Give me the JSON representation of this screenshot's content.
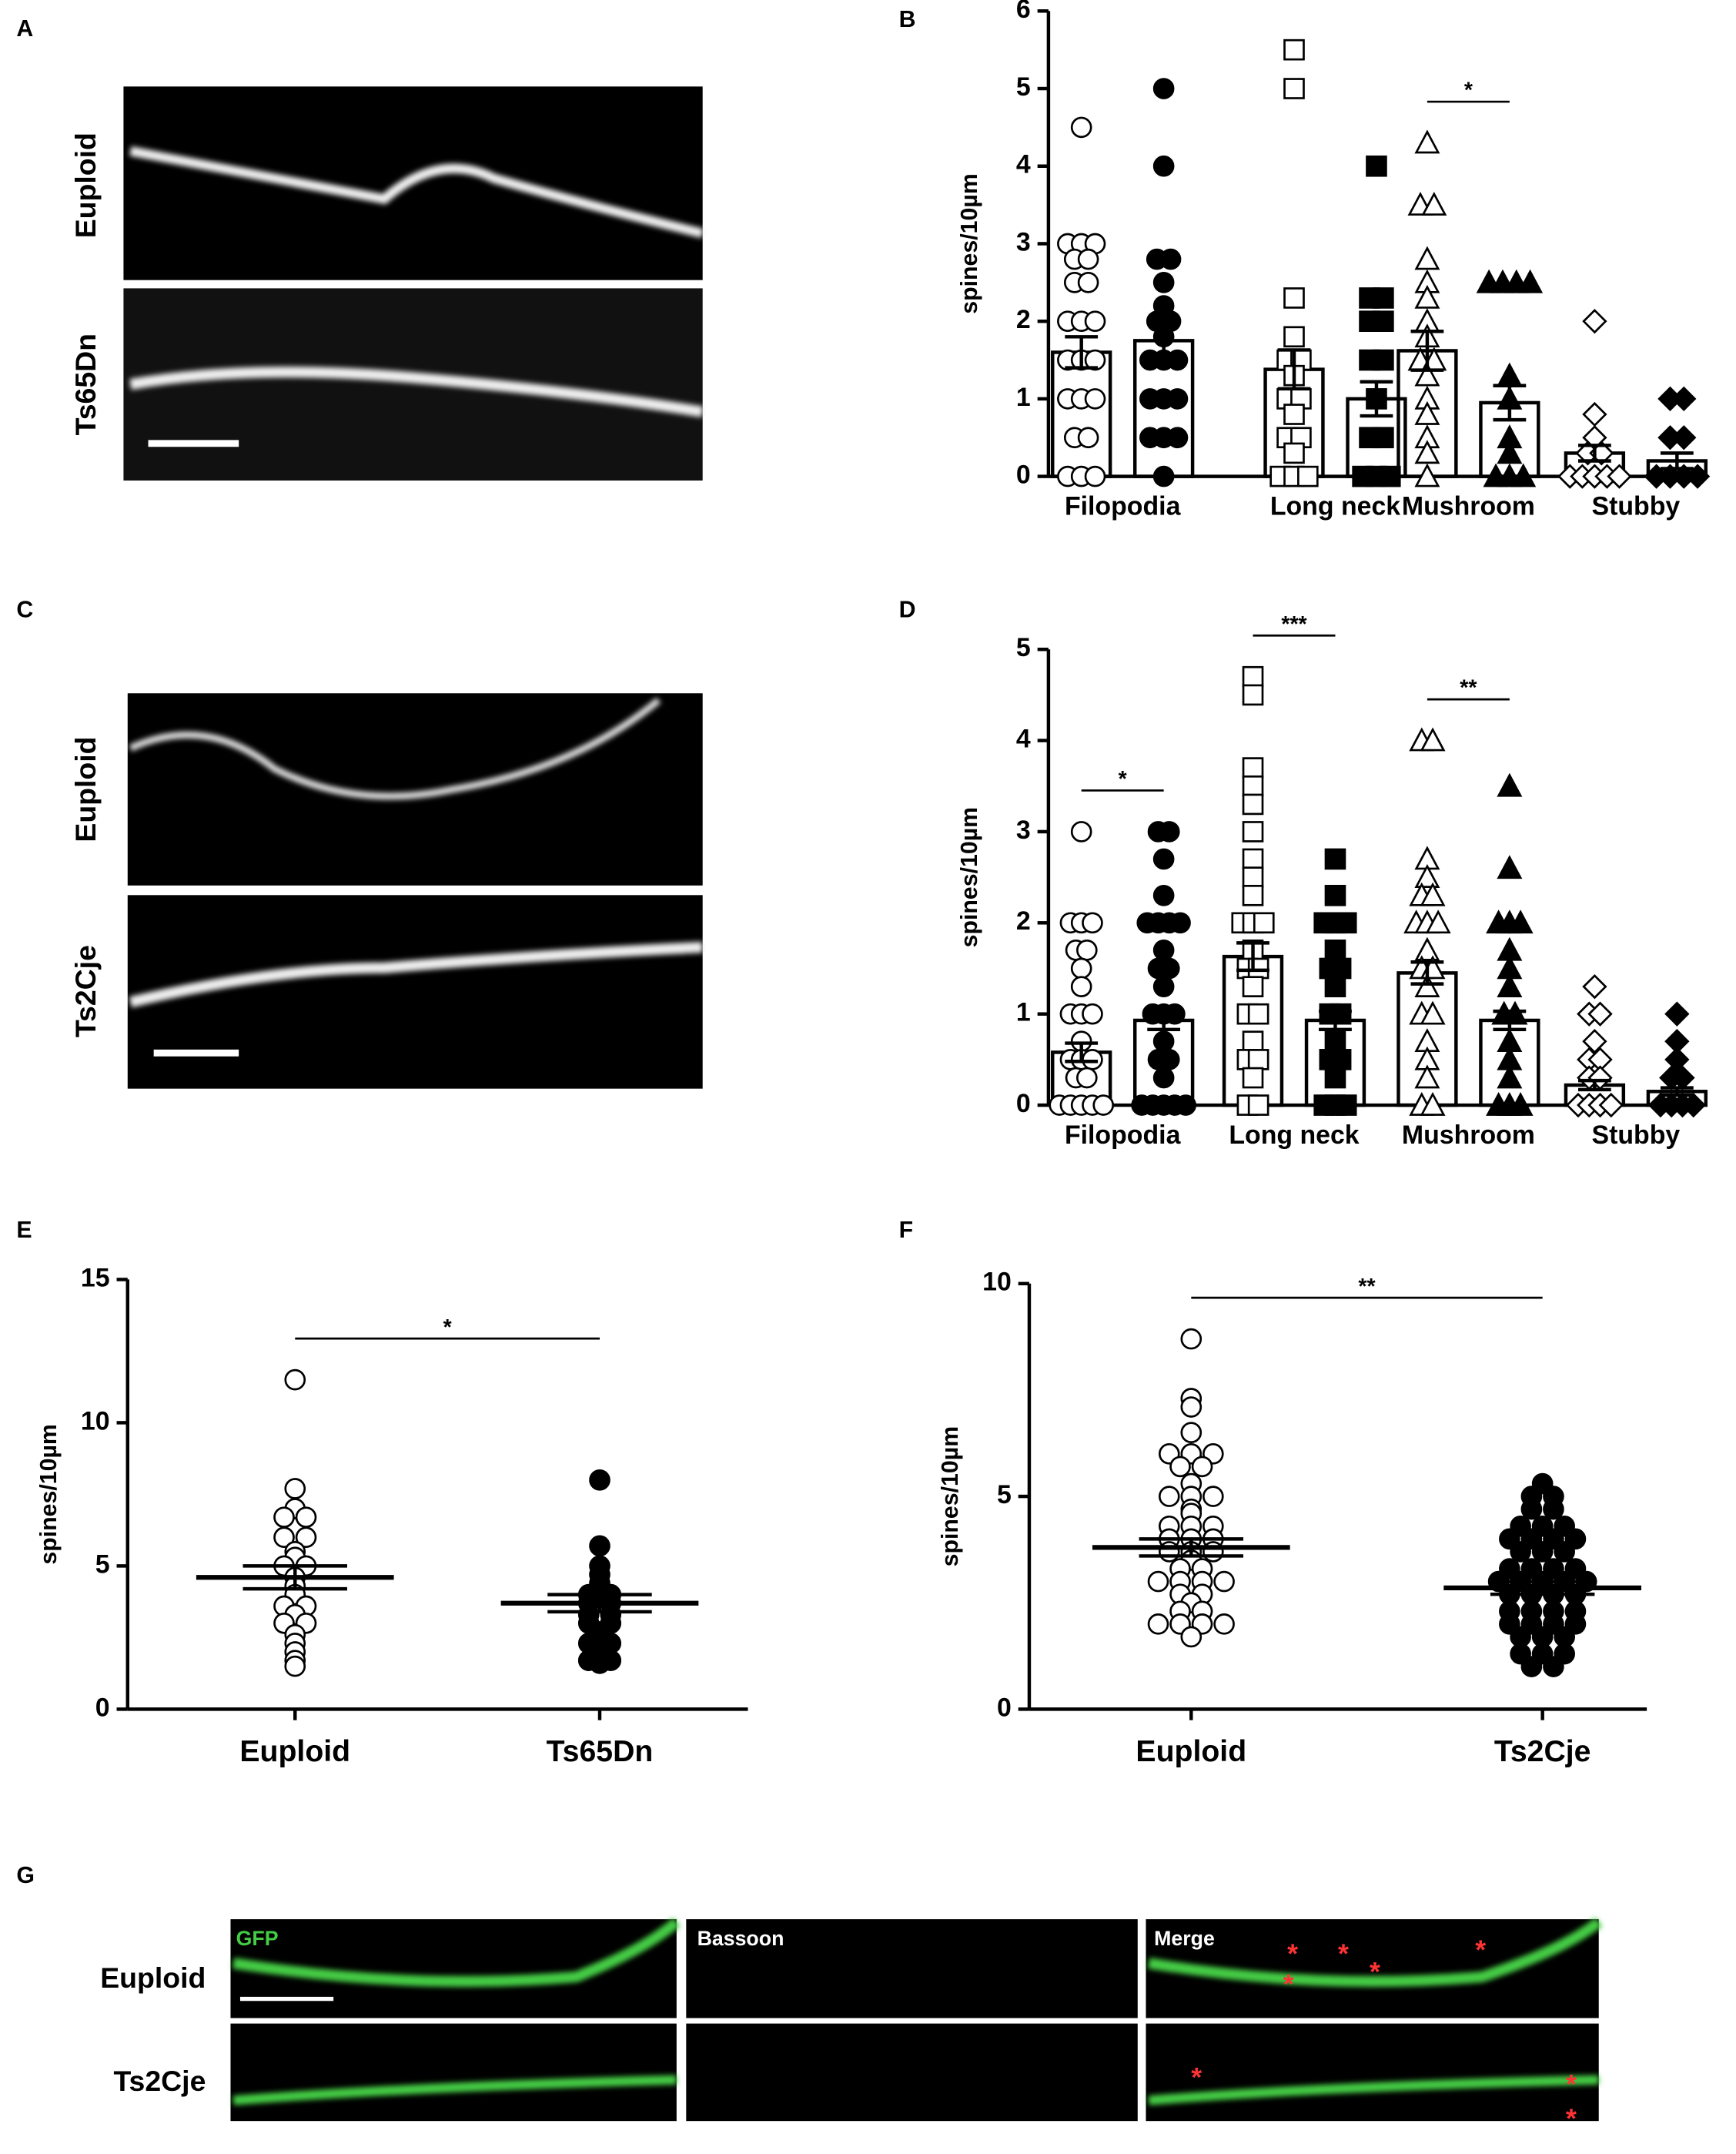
{
  "panel_labels": [
    "A",
    "B",
    "C",
    "D",
    "E",
    "F",
    "G"
  ],
  "images": {
    "A": {
      "rows": [
        "Euploid",
        "Ts65Dn"
      ]
    },
    "C": {
      "rows": [
        "Euploid",
        "Ts2Cje"
      ]
    },
    "G": {
      "rows": [
        "Euploid",
        "Ts2Cje"
      ],
      "columns": [
        "GFP",
        "Bassoon",
        "Merge"
      ],
      "marker": "*"
    }
  },
  "chart_data": [
    {
      "type": "bar",
      "ylabel": "spines/10µm",
      "ylim": [
        0,
        6
      ],
      "yticks": [
        0,
        1,
        2,
        3,
        4,
        5,
        6
      ],
      "categories": [
        "Filopodia",
        "Long neck",
        "Mushroom",
        "Stubby"
      ],
      "markers": [
        "circle",
        "square",
        "triangle",
        "diamond"
      ],
      "series": [
        {
          "color": "white",
          "values": [
            1.6,
            1.38,
            1.62,
            0.3
          ],
          "errors": [
            0.2,
            0.25,
            0.25,
            0.1
          ],
          "points": [
            [
              4.5,
              3,
              3,
              3,
              2.8,
              2.8,
              2.5,
              2.5,
              2,
              2,
              2,
              1.5,
              1.5,
              1.5,
              1,
              1,
              1,
              0.5,
              0.5,
              0,
              0,
              0
            ],
            [
              5.5,
              5,
              2.3,
              1.8,
              1.5,
              1.5,
              1.3,
              1,
              1,
              0.8,
              0.5,
              0.5,
              0.3,
              0,
              0,
              0
            ],
            [
              4.3,
              3.5,
              3.5,
              2.8,
              2.5,
              2.3,
              2,
              1.8,
              1.5,
              1.5,
              1.3,
              1,
              0.8,
              0.5,
              0.3,
              0
            ],
            [
              2,
              0.8,
              0.5,
              0.3,
              0.3,
              0,
              0,
              0,
              0,
              0
            ]
          ]
        },
        {
          "color": "black",
          "values": [
            1.75,
            1,
            0.95,
            0.2
          ],
          "errors": [
            0.22,
            0.22,
            0.22,
            0.1
          ],
          "points": [
            [
              5,
              4,
              2.8,
              2.8,
              2.5,
              2.2,
              2,
              2,
              1.8,
              1.5,
              1.5,
              1.5,
              1,
              1,
              1,
              0.5,
              0.5,
              0.5,
              0
            ],
            [
              4,
              2.3,
              2.3,
              2,
              2,
              1.5,
              1.5,
              1,
              0.5,
              0.5,
              0,
              0,
              0
            ],
            [
              2.5,
              2.5,
              2.5,
              2.5,
              1.3,
              1,
              0.5,
              0.3,
              0,
              0,
              0
            ],
            [
              1,
              1,
              0.5,
              0.5,
              0,
              0,
              0,
              0
            ]
          ]
        }
      ],
      "significance": [
        {
          "label": "*",
          "category": 2
        }
      ]
    },
    {
      "type": "bar",
      "ylabel": "spines/10µm",
      "ylim": [
        0,
        5
      ],
      "yticks": [
        0,
        1,
        2,
        3,
        4,
        5
      ],
      "categories": [
        "Filopodia",
        "Long neck",
        "Mushroom",
        "Stubby"
      ],
      "markers": [
        "circle",
        "square",
        "triangle",
        "diamond"
      ],
      "series": [
        {
          "color": "white",
          "values": [
            0.58,
            1.63,
            1.45,
            0.22
          ],
          "errors": [
            0.1,
            0.15,
            0.12,
            0.05
          ],
          "points": [
            [
              3,
              2,
              2,
              2,
              1.7,
              1.7,
              1.5,
              1.3,
              1,
              1,
              1,
              0.7,
              0.5,
              0.5,
              0.5,
              0.3,
              0.3,
              0,
              0,
              0,
              0,
              0
            ],
            [
              4.7,
              4.5,
              3.7,
              3.5,
              3.3,
              3,
              2.7,
              2.5,
              2.3,
              2,
              2,
              2,
              1.7,
              1.5,
              1.5,
              1.3,
              1,
              1,
              0.7,
              0.5,
              0.5,
              0.3,
              0,
              0
            ],
            [
              4,
              4,
              2.7,
              2.5,
              2.3,
              2.3,
              2,
              2,
              2,
              1.7,
              1.5,
              1.5,
              1.3,
              1,
              1,
              0.7,
              0.5,
              0.3,
              0,
              0
            ],
            [
              1.3,
              1,
              1,
              0.7,
              0.5,
              0.5,
              0.3,
              0.3,
              0,
              0,
              0,
              0
            ]
          ]
        },
        {
          "color": "black",
          "values": [
            0.93,
            0.93,
            0.93,
            0.15
          ],
          "errors": [
            0.1,
            0.1,
            0.1,
            0.04
          ],
          "points": [
            [
              3,
              3,
              2.7,
              2.3,
              2,
              2,
              2,
              2,
              1.7,
              1.5,
              1.5,
              1.3,
              1,
              1,
              1,
              0.7,
              0.5,
              0.5,
              0.3,
              0,
              0,
              0,
              0,
              0
            ],
            [
              2.7,
              2.3,
              2,
              2,
              2,
              1.7,
              1.5,
              1.5,
              1.3,
              1,
              1,
              0.7,
              0.5,
              0.5,
              0.3,
              0,
              0,
              0
            ],
            [
              3.5,
              2.6,
              2,
              2,
              2,
              1.7,
              1.5,
              1.3,
              1,
              1,
              0.7,
              0.5,
              0.3,
              0,
              0,
              0
            ],
            [
              1,
              0.7,
              0.5,
              0.3,
              0.3,
              0,
              0,
              0,
              0
            ]
          ]
        }
      ],
      "significance": [
        {
          "label": "*",
          "category": 0
        },
        {
          "label": "***",
          "category": 1
        },
        {
          "label": "**",
          "category": 2
        }
      ]
    },
    {
      "type": "dot",
      "ylabel": "spines/10µm",
      "ylim": [
        0,
        15
      ],
      "yticks": [
        0,
        5,
        10,
        15
      ],
      "categories": [
        "Euploid",
        "Ts65Dn"
      ],
      "colors": [
        "white",
        "black"
      ],
      "values": [
        4.6,
        3.7
      ],
      "errors": [
        0.4,
        0.3
      ],
      "points": [
        [
          11.5,
          7.7,
          7,
          6.7,
          6.7,
          6,
          6,
          5.5,
          5.3,
          5,
          5,
          4.6,
          4.3,
          4,
          3.6,
          3.6,
          3.3,
          3,
          3,
          2.6,
          2.3,
          2,
          1.7,
          1.5
        ],
        [
          8,
          5.7,
          5,
          4.7,
          4.4,
          4,
          4,
          3.7,
          3.7,
          3.3,
          3.3,
          3,
          3,
          2.7,
          2.3,
          2.3,
          2,
          1.7,
          1.7,
          1.6
        ]
      ],
      "significance": [
        {
          "label": "*"
        }
      ]
    },
    {
      "type": "dot",
      "ylabel": "spines/10µm",
      "ylim": [
        0,
        10
      ],
      "yticks": [
        0,
        5,
        10
      ],
      "categories": [
        "Euploid",
        "Ts2Cje"
      ],
      "colors": [
        "white",
        "black"
      ],
      "values": [
        3.8,
        2.85
      ],
      "errors": [
        0.2,
        0.15
      ],
      "points": [
        [
          8.7,
          7.3,
          7.1,
          6.5,
          6,
          6,
          6,
          5.7,
          5.7,
          5.3,
          5,
          5,
          5,
          4.7,
          4.6,
          4.3,
          4.3,
          4.3,
          4,
          4,
          4,
          3.7,
          3.7,
          3.7,
          3.5,
          3.3,
          3.3,
          3,
          3,
          3,
          3,
          2.7,
          2.7,
          2.5,
          2.3,
          2.3,
          2,
          2,
          2,
          2,
          1.7
        ],
        [
          5.3,
          5,
          5,
          4.7,
          4.7,
          4.3,
          4.3,
          4.3,
          4,
          4,
          4,
          4,
          3.7,
          3.7,
          3.7,
          3.3,
          3.3,
          3.3,
          3.3,
          3,
          3,
          3,
          3,
          3,
          2.7,
          2.7,
          2.7,
          2.7,
          2.3,
          2.3,
          2.3,
          2.3,
          2,
          2,
          2,
          2,
          1.7,
          1.7,
          1.7,
          1.3,
          1.3,
          1.3,
          1,
          1
        ]
      ],
      "significance": [
        {
          "label": "**"
        }
      ]
    }
  ]
}
